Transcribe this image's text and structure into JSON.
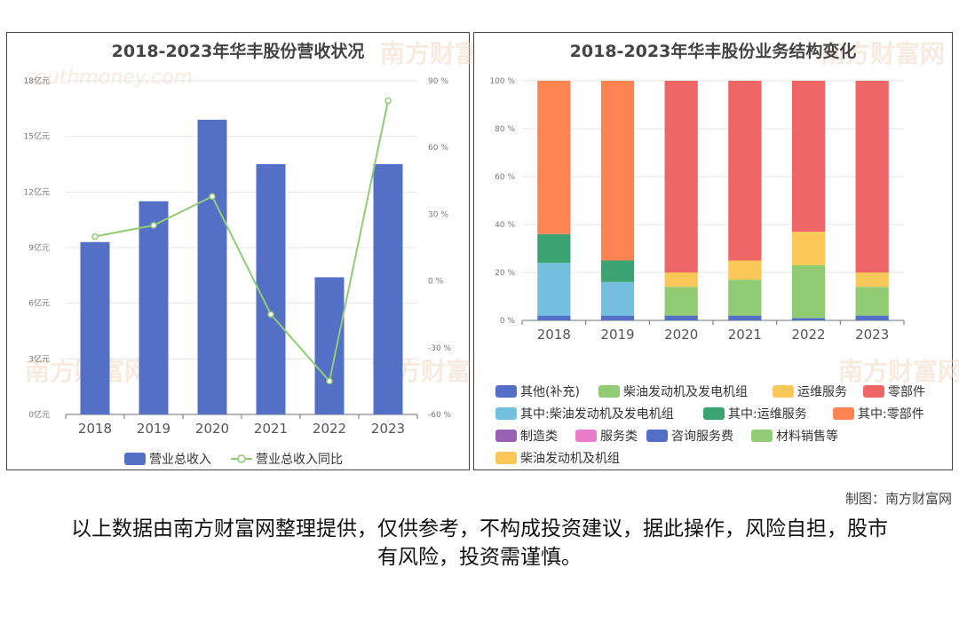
{
  "chart_data": [
    {
      "type": "bar",
      "title": "2018-2023年华丰股份营收状况",
      "categories": [
        "2018",
        "2019",
        "2020",
        "2021",
        "2022",
        "2023"
      ],
      "y_left": {
        "min": 0,
        "max": 18,
        "ticks": [
          0,
          3,
          6,
          9,
          12,
          15,
          18
        ],
        "unit": "亿元"
      },
      "y_right": {
        "min": -60,
        "max": 90,
        "ticks": [
          -60,
          -30,
          0,
          30,
          60,
          90
        ],
        "unit": "%"
      },
      "series": [
        {
          "name": "营业总收入",
          "type": "bar",
          "axis": "left",
          "color": "#5470c6",
          "values": [
            9.3,
            11.5,
            15.9,
            13.5,
            7.4,
            13.5
          ]
        },
        {
          "name": "营业总收入同比",
          "type": "line",
          "axis": "right",
          "color": "#91cc75",
          "values": [
            20,
            25,
            38,
            -15,
            -45,
            81
          ]
        }
      ],
      "legend_position": "bottom"
    },
    {
      "type": "bar",
      "stacked": true,
      "title": "2018-2023年华丰股份业务结构变化",
      "categories": [
        "2018",
        "2019",
        "2020",
        "2021",
        "2022",
        "2023"
      ],
      "y": {
        "min": 0,
        "max": 100,
        "ticks": [
          0,
          20,
          40,
          60,
          80,
          100
        ],
        "unit": "%"
      },
      "series": [
        {
          "name": "其他(补充)",
          "color": "#5470c6",
          "values": [
            2,
            2,
            2,
            2,
            1,
            2
          ]
        },
        {
          "name": "柴油发动机及发电机组",
          "color": "#91cc75",
          "values": [
            0,
            0,
            12,
            15,
            22,
            12
          ]
        },
        {
          "name": "运维服务",
          "color": "#fac858",
          "values": [
            0,
            0,
            6,
            8,
            14,
            6
          ]
        },
        {
          "name": "零部件",
          "color": "#ee6666",
          "values": [
            0,
            0,
            80,
            75,
            63,
            80
          ]
        },
        {
          "name": "其中:柴油发动机及发电机组",
          "color": "#73c0de",
          "values": [
            22,
            14,
            0,
            0,
            0,
            0
          ]
        },
        {
          "name": "其中:运维服务",
          "color": "#3ba272",
          "values": [
            12,
            9,
            0,
            0,
            0,
            0
          ]
        },
        {
          "name": "其中:零部件",
          "color": "#fc8452",
          "values": [
            64,
            75,
            0,
            0,
            0,
            0
          ]
        },
        {
          "name": "制造类",
          "color": "#9a60b4",
          "values": [
            0,
            0,
            0,
            0,
            0,
            0
          ]
        },
        {
          "name": "服务类",
          "color": "#ea7ccc",
          "values": [
            0,
            0,
            0,
            0,
            0,
            0
          ]
        },
        {
          "name": "咨询服务费",
          "color": "#5470c6",
          "values": [
            0,
            0,
            0,
            0,
            0,
            0
          ]
        },
        {
          "name": "材料销售等",
          "color": "#91cc75",
          "values": [
            0,
            0,
            0,
            0,
            0,
            0
          ]
        },
        {
          "name": "柴油发动机及机组",
          "color": "#fac858",
          "values": [
            0,
            0,
            0,
            0,
            0,
            0
          ]
        }
      ],
      "legend_position": "bottom"
    }
  ],
  "watermark": {
    "cn": "南方财富网",
    "en": "southmoney.com"
  },
  "credit": "制图：南方财富网",
  "disclaimer": "以上数据由南方财富网整理提供，仅供参考，不构成投资建议，据此操作，风险自担，股市有风险，投资需谨慎。"
}
